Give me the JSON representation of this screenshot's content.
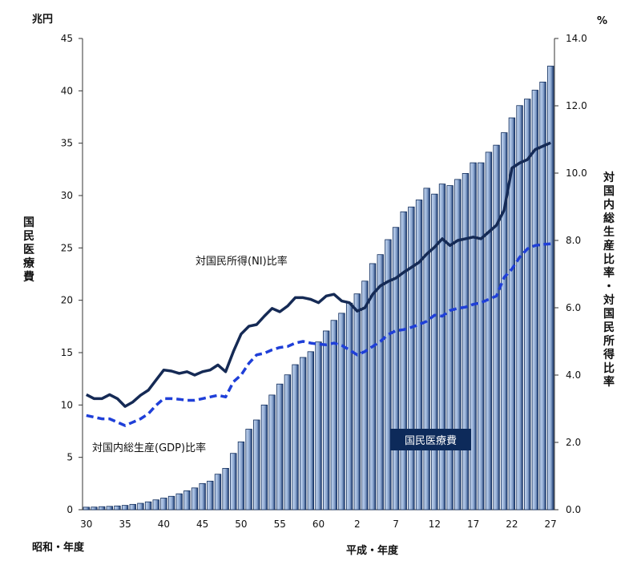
{
  "chart_data": {
    "type": "bar",
    "left_unit": "兆円",
    "right_unit": "%",
    "y_left_label": "国民医療費",
    "y_right_label": "対国内総生産比率・対国民所得比率",
    "ylim_left": [
      0,
      45
    ],
    "ylim_right": [
      0,
      14
    ],
    "y_left_ticks": [
      "0",
      "5",
      "10",
      "15",
      "20",
      "25",
      "30",
      "35",
      "40",
      "45"
    ],
    "y_right_ticks": [
      "0.0",
      "2.0",
      "4.0",
      "6.0",
      "8.0",
      "10.0",
      "12.0",
      "14.0"
    ],
    "era_left": "昭和・年度",
    "era_right": "平成・年度",
    "x_tick_labels": [
      "30",
      "35",
      "40",
      "45",
      "50",
      "55",
      "60",
      "2",
      "7",
      "12",
      "17",
      "22",
      "27"
    ],
    "x_tick_index": [
      0,
      5,
      10,
      15,
      20,
      25,
      30,
      35,
      40,
      45,
      50,
      55,
      60
    ],
    "categories": [
      "30",
      "31",
      "32",
      "33",
      "34",
      "35",
      "36",
      "37",
      "38",
      "39",
      "40",
      "41",
      "42",
      "43",
      "44",
      "45",
      "46",
      "47",
      "48",
      "49",
      "50",
      "51",
      "52",
      "53",
      "54",
      "55",
      "56",
      "57",
      "58",
      "59",
      "60",
      "61",
      "62",
      "63",
      "1",
      "2",
      "3",
      "4",
      "5",
      "6",
      "7",
      "8",
      "9",
      "10",
      "11",
      "12",
      "13",
      "14",
      "15",
      "16",
      "17",
      "18",
      "19",
      "20",
      "21",
      "22",
      "23",
      "24",
      "25",
      "26",
      "27"
    ],
    "series": [
      {
        "name": "国民医療費",
        "type": "bar",
        "axis": "left",
        "values": [
          0.24,
          0.25,
          0.29,
          0.32,
          0.36,
          0.41,
          0.51,
          0.61,
          0.75,
          0.94,
          1.11,
          1.28,
          1.52,
          1.81,
          2.08,
          2.5,
          2.73,
          3.39,
          3.95,
          5.38,
          6.48,
          7.69,
          8.57,
          10.0,
          10.95,
          12.0,
          12.88,
          13.85,
          14.54,
          15.09,
          16.02,
          17.07,
          18.08,
          18.76,
          19.73,
          20.61,
          21.83,
          23.5,
          24.36,
          25.79,
          26.96,
          28.45,
          28.91,
          29.58,
          30.7,
          30.14,
          31.1,
          30.95,
          31.54,
          32.11,
          33.13,
          33.13,
          34.14,
          34.81,
          36.0,
          37.42,
          38.59,
          39.21,
          40.06,
          40.84,
          42.36
        ]
      },
      {
        "name": "対国民所得(NI)比率",
        "type": "line",
        "axis": "right",
        "values": [
          3.42,
          3.3,
          3.3,
          3.42,
          3.3,
          3.07,
          3.2,
          3.4,
          3.55,
          3.85,
          4.15,
          4.12,
          4.05,
          4.1,
          4.0,
          4.1,
          4.15,
          4.3,
          4.1,
          4.7,
          5.22,
          5.45,
          5.5,
          5.75,
          5.98,
          5.88,
          6.05,
          6.3,
          6.3,
          6.25,
          6.15,
          6.35,
          6.4,
          6.2,
          6.15,
          5.9,
          6.0,
          6.4,
          6.65,
          6.78,
          6.88,
          7.05,
          7.2,
          7.35,
          7.6,
          7.8,
          8.05,
          7.85,
          8.0,
          8.05,
          8.1,
          8.05,
          8.25,
          8.45,
          8.9,
          10.15,
          10.3,
          10.4,
          10.7,
          10.8,
          10.9
        ]
      },
      {
        "name": "対国内総生産(GDP)比率",
        "type": "line",
        "axis": "right",
        "values": [
          2.8,
          2.75,
          2.7,
          2.7,
          2.6,
          2.5,
          2.6,
          2.7,
          2.85,
          3.1,
          3.3,
          3.3,
          3.28,
          3.25,
          3.25,
          3.3,
          3.35,
          3.4,
          3.35,
          3.8,
          4.0,
          4.35,
          4.6,
          4.65,
          4.75,
          4.82,
          4.85,
          4.95,
          5.0,
          4.95,
          4.92,
          4.9,
          4.95,
          4.88,
          4.75,
          4.6,
          4.7,
          4.85,
          5.0,
          5.2,
          5.32,
          5.35,
          5.42,
          5.5,
          5.6,
          5.78,
          5.75,
          5.92,
          5.98,
          6.02,
          6.1,
          6.15,
          6.25,
          6.35,
          6.9,
          7.15,
          7.5,
          7.75,
          7.85,
          7.88,
          7.9
        ]
      }
    ],
    "annotations": {
      "ni": "対国民所得(NI)比率",
      "gdp": "対国内総生産(GDP)比率",
      "nme": "国民医療費"
    }
  }
}
